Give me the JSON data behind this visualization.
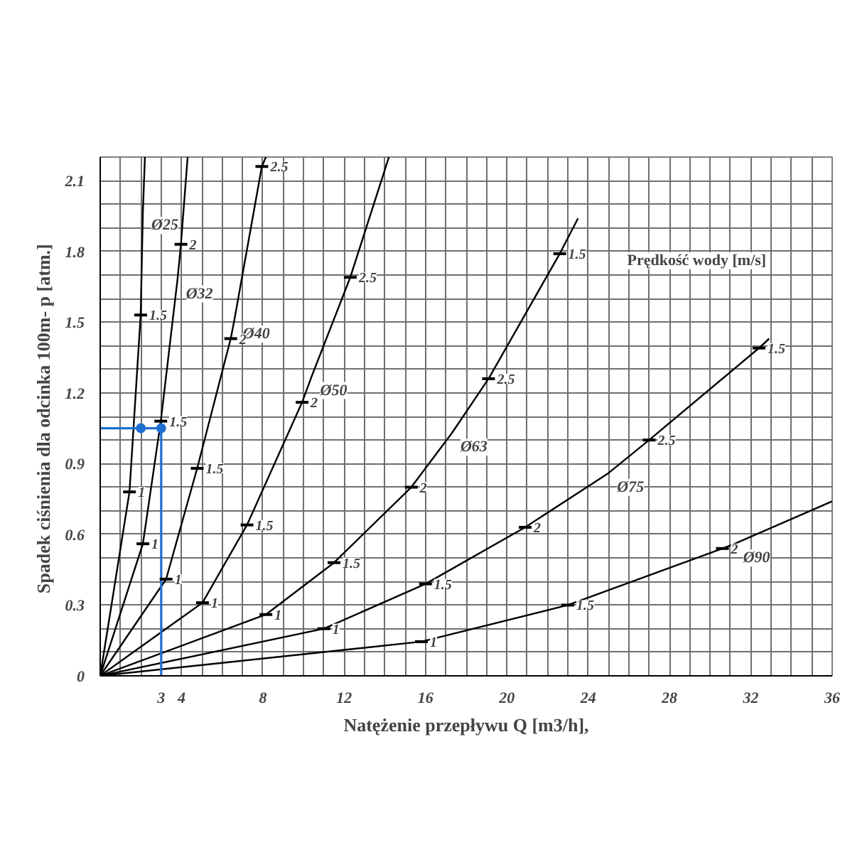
{
  "chart_data": {
    "type": "line",
    "xlabel": "Natężenie przepływu Q [m3/h],",
    "ylabel": "Spadek ciśnienia  dla odcinka 100m- p [atm.]",
    "xlim": [
      0,
      36
    ],
    "ylim": [
      0,
      2.2
    ],
    "xticks": [
      {
        "value": 0,
        "label": null
      },
      {
        "value": 1,
        "label": null
      },
      {
        "value": 2,
        "label": null
      },
      3,
      4,
      {
        "value": 5,
        "label": null
      },
      {
        "value": 6,
        "label": null
      },
      {
        "value": 7,
        "label": null
      },
      8,
      {
        "value": 9,
        "label": null
      },
      {
        "value": 10,
        "label": null
      },
      {
        "value": 11,
        "label": null
      },
      12,
      {
        "value": 13,
        "label": null
      },
      {
        "value": 14,
        "label": null
      },
      {
        "value": 15,
        "label": null
      },
      16,
      {
        "value": 17,
        "label": null
      },
      {
        "value": 18,
        "label": null
      },
      {
        "value": 19,
        "label": null
      },
      20,
      {
        "value": 21,
        "label": null
      },
      {
        "value": 22,
        "label": null
      },
      {
        "value": 23,
        "label": null
      },
      24,
      {
        "value": 25,
        "label": null
      },
      {
        "value": 26,
        "label": null
      },
      {
        "value": 27,
        "label": null
      },
      28,
      {
        "value": 29,
        "label": null
      },
      {
        "value": 30,
        "label": null
      },
      {
        "value": 31,
        "label": null
      },
      32,
      {
        "value": 33,
        "label": null
      },
      {
        "value": 34,
        "label": null
      },
      {
        "value": 35,
        "label": null
      },
      36
    ],
    "yticks": [
      0,
      {
        "value": 0.1,
        "label": null
      },
      {
        "value": 0.2,
        "label": null
      },
      0.3,
      {
        "value": 0.4,
        "label": null
      },
      {
        "value": 0.5,
        "label": null
      },
      0.6,
      {
        "value": 0.7,
        "label": null
      },
      {
        "value": 0.8,
        "label": null
      },
      0.9,
      {
        "value": 1.0,
        "label": null
      },
      {
        "value": 1.1,
        "label": null
      },
      1.2,
      {
        "value": 1.3,
        "label": null
      },
      {
        "value": 1.4,
        "label": null
      },
      1.5,
      {
        "value": 1.6,
        "label": null
      },
      {
        "value": 1.7,
        "label": null
      },
      1.8,
      {
        "value": 1.9,
        "label": null
      },
      {
        "value": 2.0,
        "label": null
      },
      2.1,
      {
        "value": 2.2,
        "label": null
      }
    ],
    "grid": true,
    "marker": "none",
    "line_style": "solid",
    "series": [
      {
        "color": "#000000",
        "x": [
          0,
          1.44,
          1.99,
          2.1,
          2.2
        ],
        "values": [
          0,
          0.78,
          1.53,
          1.97,
          2.2
        ]
      },
      {
        "color": "#000000",
        "x": [
          0,
          2.1,
          2.98,
          3.8,
          3.97,
          4.3
        ],
        "values": [
          0,
          0.56,
          1.08,
          1.68,
          1.83,
          2.2
        ]
      },
      {
        "color": "#000000",
        "x": [
          0,
          3.24,
          4.77,
          6.42,
          6.6,
          7.95,
          8.15
        ],
        "values": [
          0,
          0.41,
          0.88,
          1.43,
          1.51,
          2.16,
          2.2
        ]
      },
      {
        "color": "#000000",
        "x": [
          0,
          5.03,
          7.22,
          9.93,
          10.4,
          12.3,
          14.2
        ],
        "values": [
          0,
          0.31,
          0.64,
          1.16,
          1.27,
          1.69,
          2.2
        ]
      },
      {
        "color": "#000000",
        "x": [
          0,
          8.15,
          11.5,
          15.3,
          17.3,
          19.1,
          22.6,
          23.5
        ],
        "values": [
          0,
          0.26,
          0.48,
          0.8,
          1.03,
          1.26,
          1.79,
          1.94
        ]
      },
      {
        "color": "#000000",
        "x": [
          0,
          11.0,
          16.0,
          20.9,
          25.0,
          27.0,
          32.4,
          32.9
        ],
        "values": [
          0,
          0.2,
          0.39,
          0.63,
          0.86,
          1.0,
          1.39,
          1.43
        ]
      },
      {
        "color": "#000000",
        "x": [
          0,
          15.8,
          23.0,
          30.6,
          31.2,
          36
        ],
        "values": [
          0,
          0.145,
          0.3,
          0.54,
          0.56,
          0.74
        ]
      },
      {
        "color": "#1e6fd0",
        "x": [
          0,
          3,
          3
        ],
        "values": [
          1.05,
          1.05,
          0
        ]
      },
      {
        "type": "scatter",
        "marker": "circle",
        "color": "#1e6fd0",
        "x": [
          2,
          3
        ],
        "values": [
          1.05,
          1.05
        ]
      }
    ],
    "annotations": [
      "Prędkość wody [m/s]",
      {
        "text": "Ø25",
        "x": 2.1,
        "y": 1.97
      },
      {
        "text": "Ø32",
        "x": 3.8,
        "y": 1.68
      },
      {
        "text": "Ø40",
        "x": 6.6,
        "y": 1.51
      },
      {
        "text": "Ø50",
        "x": 10.4,
        "y": 1.27
      },
      {
        "text": "Ø63",
        "x": 17.3,
        "y": 1.03
      },
      {
        "text": "Ø75",
        "x": 25.0,
        "y": 0.86
      },
      {
        "text": "Ø90",
        "x": 31.2,
        "y": 0.56
      },
      {
        "text": "1",
        "x": 1.44,
        "y": 0.78
      },
      {
        "text": "1.5",
        "x": 1.99,
        "y": 1.53
      },
      {
        "text": "1",
        "x": 2.1,
        "y": 0.56
      },
      {
        "text": "1.5",
        "x": 2.98,
        "y": 1.08
      },
      {
        "text": "2",
        "x": 3.97,
        "y": 1.83
      },
      {
        "text": "1",
        "x": 3.24,
        "y": 0.41
      },
      {
        "text": "1.5",
        "x": 4.77,
        "y": 0.88
      },
      {
        "text": "2",
        "x": 6.42,
        "y": 1.43
      },
      {
        "text": "2.5",
        "x": 7.95,
        "y": 2.16
      },
      {
        "text": "1",
        "x": 5.03,
        "y": 0.31
      },
      {
        "text": "1.5",
        "x": 7.22,
        "y": 0.64
      },
      {
        "text": "2",
        "x": 9.93,
        "y": 1.16
      },
      {
        "text": "2.5",
        "x": 12.3,
        "y": 1.69
      },
      {
        "text": "1",
        "x": 8.15,
        "y": 0.26
      },
      {
        "text": "1.5",
        "x": 11.5,
        "y": 0.48
      },
      {
        "text": "2",
        "x": 15.3,
        "y": 0.8
      },
      {
        "text": "2.5",
        "x": 19.1,
        "y": 1.26
      },
      {
        "text": "1.5",
        "x": 22.6,
        "y": 1.79
      },
      {
        "text": "1",
        "x": 11.0,
        "y": 0.2
      },
      {
        "text": "1.5",
        "x": 16.0,
        "y": 0.39
      },
      {
        "text": "2",
        "x": 20.9,
        "y": 0.63
      },
      {
        "text": "2.5",
        "x": 27.0,
        "y": 1.0
      },
      {
        "text": "1.5",
        "x": 32.4,
        "y": 1.39
      },
      {
        "text": "1",
        "x": 15.8,
        "y": 0.145
      },
      {
        "text": "1.5",
        "x": 23.0,
        "y": 0.3
      },
      {
        "text": "2",
        "x": 30.6,
        "y": 0.54
      }
    ]
  }
}
